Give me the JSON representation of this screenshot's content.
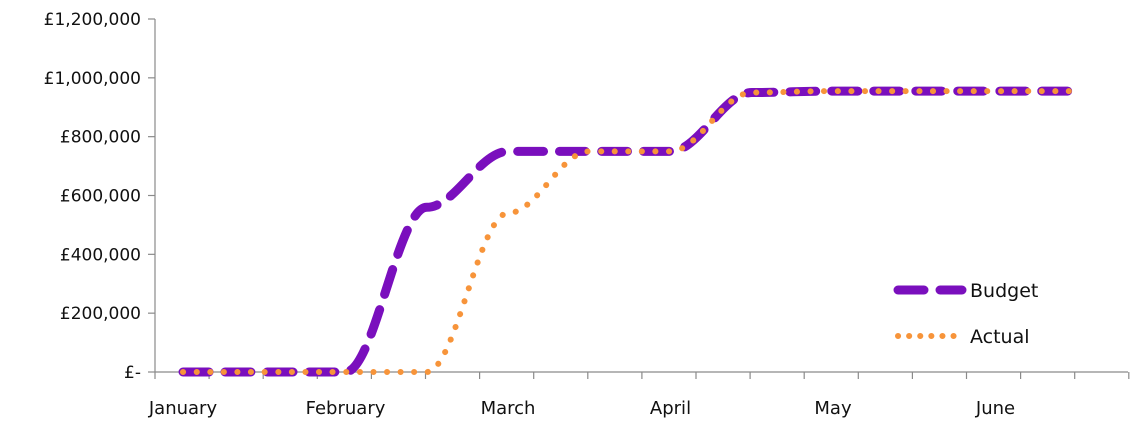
{
  "chart_data": {
    "type": "line",
    "title": "",
    "xlabel": "",
    "ylabel": "",
    "ylim": [
      0,
      1200000
    ],
    "y_ticks": [
      {
        "value": 0,
        "label": "£-"
      },
      {
        "value": 200000,
        "label": "£200,000"
      },
      {
        "value": 400000,
        "label": "£400,000"
      },
      {
        "value": 600000,
        "label": "£600,000"
      },
      {
        "value": 800000,
        "label": "£800,000"
      },
      {
        "value": 1000000,
        "label": "£1,000,000"
      },
      {
        "value": 1200000,
        "label": "£1,200,000"
      }
    ],
    "months": [
      "January",
      "February",
      "March",
      "April",
      "May",
      "June"
    ],
    "x": [
      1,
      1.5,
      2,
      2.5,
      3,
      3.5,
      4,
      4.5,
      5,
      5.5,
      6,
      6.5
    ],
    "grid": false,
    "legend": "bottom-right",
    "series": [
      {
        "name": "Budget",
        "color": "#7a0fbd",
        "style": "dashed",
        "values": [
          0,
          0,
          0,
          560000,
          750000,
          750000,
          750000,
          950000,
          955000,
          955000,
          955000,
          955000
        ]
      },
      {
        "name": "Actual",
        "color": "#f7943a",
        "style": "dotted",
        "values": [
          0,
          0,
          0,
          0,
          540000,
          750000,
          750000,
          950000,
          955000,
          955000,
          955000,
          955000
        ]
      }
    ]
  }
}
